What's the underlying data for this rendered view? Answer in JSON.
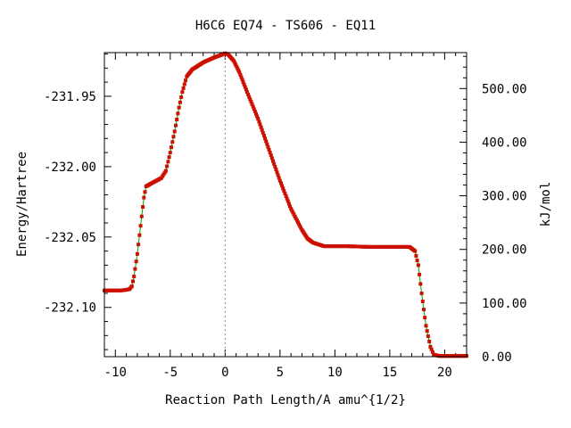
{
  "chart_data": {
    "type": "line",
    "title": "H6C6   EQ74 - TS606 - EQ11",
    "xlabel": "Reaction Path Length/A amu^{1/2}",
    "ylabel": "Energy/Hartree",
    "y2label": "kJ/mol",
    "xlim": [
      -11,
      22
    ],
    "ylim": [
      -232.135,
      -231.919
    ],
    "y2lim": [
      0,
      567
    ],
    "x_ticks": [
      -10,
      -5,
      0,
      5,
      10,
      15,
      20
    ],
    "y_ticks": [
      -231.95,
      -232.0,
      -232.05,
      -232.1
    ],
    "y_tick_labels": [
      "-231.95",
      "-232.00",
      "-232.05",
      "-232.10"
    ],
    "y2_ticks": [
      0,
      100,
      200,
      300,
      400,
      500
    ],
    "y2_tick_labels": [
      "0.00",
      "100.00",
      "200.00",
      "300.00",
      "400.00",
      "500.00"
    ],
    "ts_marker_x": 0,
    "grid": false,
    "series": [
      {
        "line_color": "#00aa00",
        "marker_color": "#cc1100",
        "points": [
          [
            -11.0,
            -232.088
          ],
          [
            -9.5,
            -232.088
          ],
          [
            -9.0,
            -232.0875
          ],
          [
            -8.7,
            -232.087
          ],
          [
            -8.5,
            -232.085
          ],
          [
            -8.3,
            -232.078
          ],
          [
            -8.0,
            -232.062
          ],
          [
            -7.7,
            -232.042
          ],
          [
            -7.4,
            -232.022
          ],
          [
            -7.2,
            -232.014
          ],
          [
            -6.5,
            -232.011
          ],
          [
            -5.8,
            -232.008
          ],
          [
            -5.4,
            -232.003
          ],
          [
            -5.0,
            -231.99
          ],
          [
            -4.6,
            -231.975
          ],
          [
            -4.2,
            -231.958
          ],
          [
            -3.9,
            -231.947
          ],
          [
            -3.5,
            -231.936
          ],
          [
            -3.0,
            -231.931
          ],
          [
            -2.0,
            -231.926
          ],
          [
            -1.0,
            -231.9225
          ],
          [
            -0.3,
            -231.9205
          ],
          [
            0.0,
            -231.9195
          ],
          [
            0.3,
            -231.9205
          ],
          [
            0.8,
            -231.925
          ],
          [
            1.3,
            -231.933
          ],
          [
            2.0,
            -231.947
          ],
          [
            3.0,
            -231.966
          ],
          [
            4.0,
            -231.988
          ],
          [
            5.0,
            -232.01
          ],
          [
            6.0,
            -232.03
          ],
          [
            7.0,
            -232.045
          ],
          [
            7.5,
            -232.051
          ],
          [
            8.0,
            -232.054
          ],
          [
            9.0,
            -232.0565
          ],
          [
            11.0,
            -232.0565
          ],
          [
            13.0,
            -232.057
          ],
          [
            15.0,
            -232.057
          ],
          [
            16.8,
            -232.057
          ],
          [
            17.3,
            -232.06
          ],
          [
            17.6,
            -232.07
          ],
          [
            17.9,
            -232.09
          ],
          [
            18.3,
            -232.113
          ],
          [
            18.7,
            -232.128
          ],
          [
            19.0,
            -232.1335
          ],
          [
            19.5,
            -232.1345
          ],
          [
            22.0,
            -232.1345
          ]
        ]
      }
    ]
  }
}
